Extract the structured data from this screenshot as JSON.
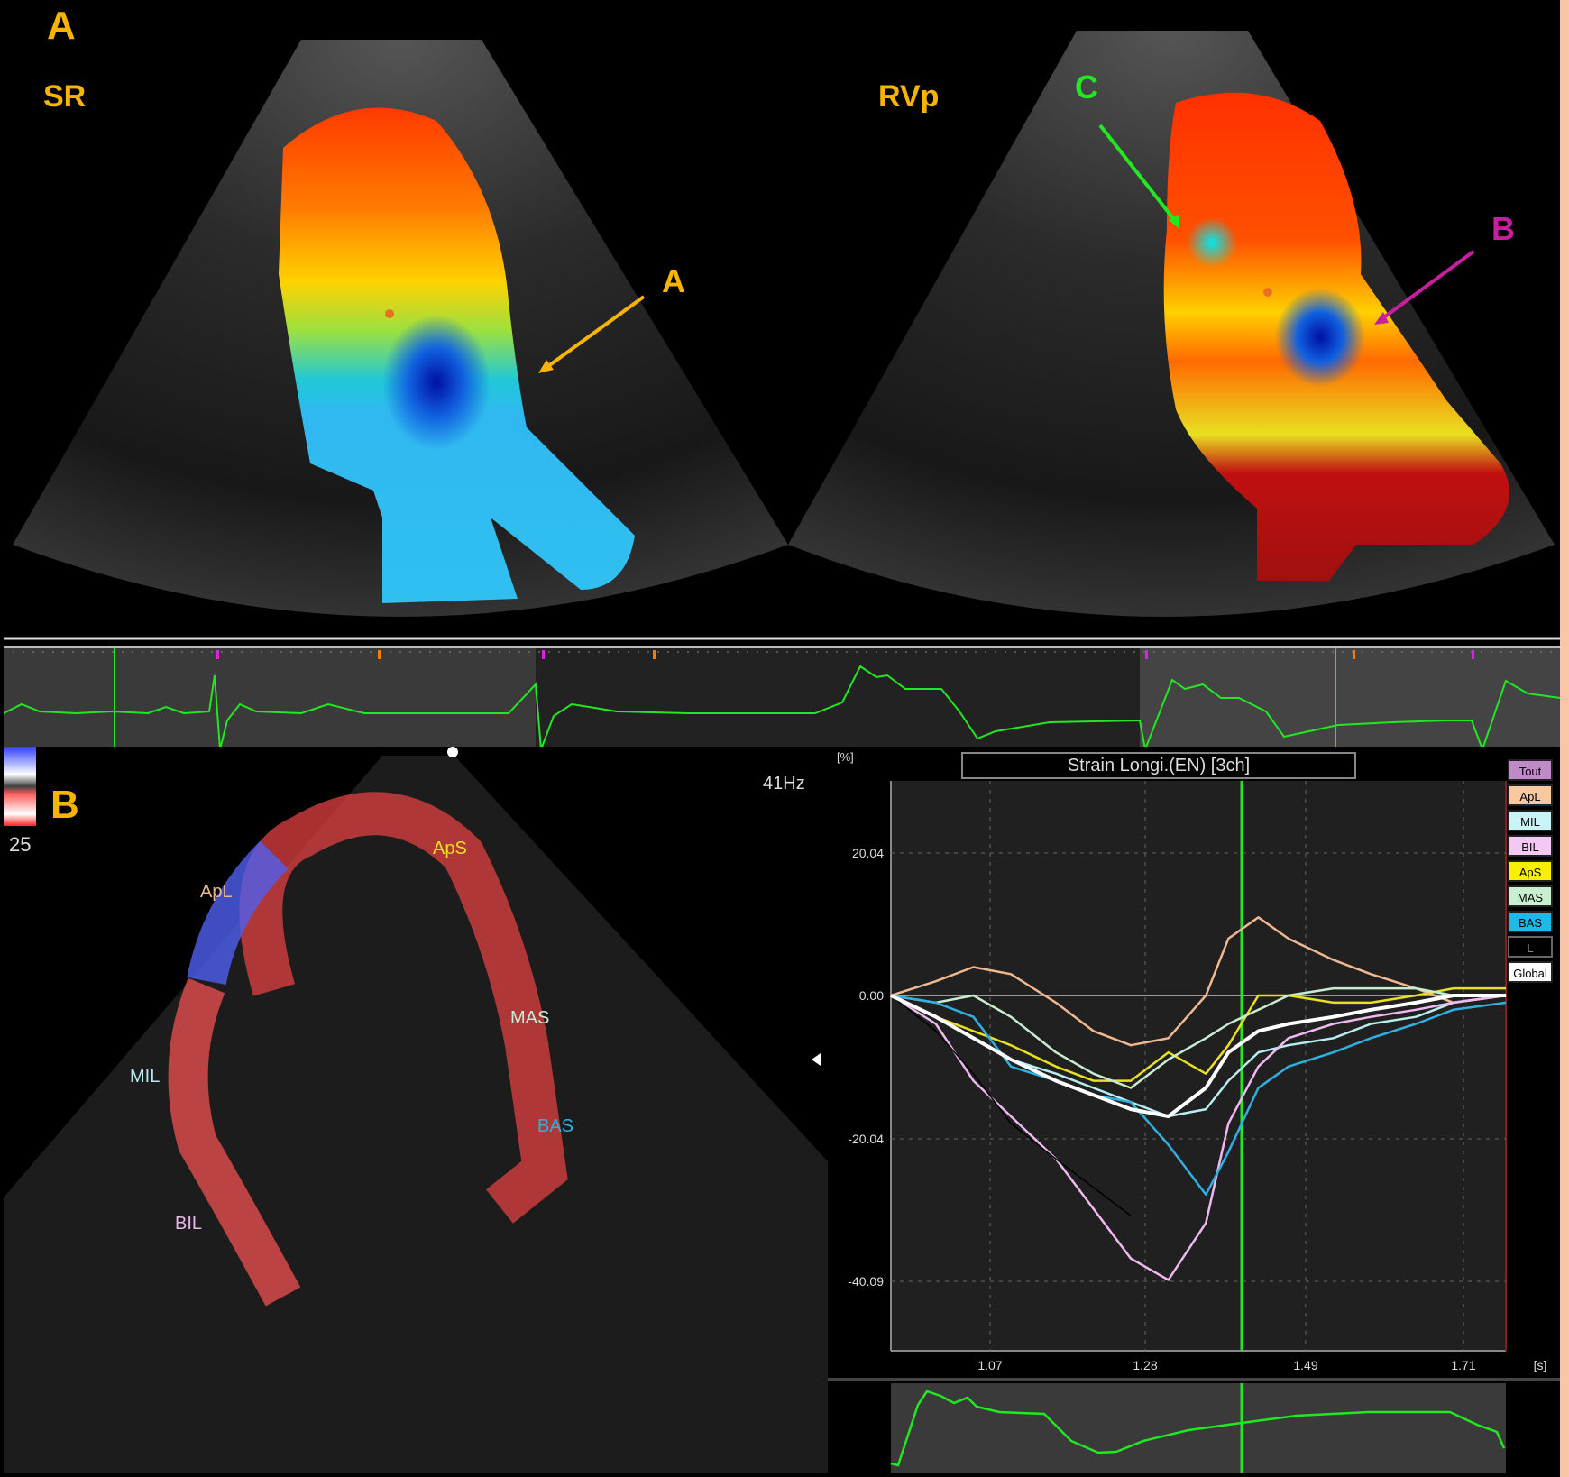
{
  "panel_labels": {
    "a": "A",
    "b": "B"
  },
  "top_panel": {
    "left_view_label": "SR",
    "right_view_label": "RVp",
    "annotations": [
      {
        "label": "A",
        "color": "#f8b400",
        "description": "orange arrow pointing at vortex region"
      },
      {
        "label": "B",
        "color": "#c81ea0",
        "description": "magenta arrow pointing at blue vortex"
      },
      {
        "label": "C",
        "color": "#22e822",
        "description": "green arrow pointing at apical vortex"
      }
    ]
  },
  "echo_panel": {
    "frame_rate": "41Hz",
    "color_scale_value": "25",
    "segments": [
      {
        "name": "ApL",
        "color": "#e8b890"
      },
      {
        "name": "MIL",
        "color": "#b8e8f0"
      },
      {
        "name": "BIL",
        "color": "#e8b8e8"
      },
      {
        "name": "ApS",
        "color": "#e8e020"
      },
      {
        "name": "MAS",
        "color": "#c8ecd8"
      },
      {
        "name": "BAS",
        "color": "#30b0e0"
      }
    ]
  },
  "chart_panel": {
    "title": "Strain Longi.(EN) [3ch]",
    "y_unit": "[%]",
    "x_unit": "[s]",
    "legend_buttons": [
      {
        "label": "Tout",
        "bg": "#c08ac8"
      },
      {
        "label": "ApL",
        "bg": "#f8c8a0"
      },
      {
        "label": "MIL",
        "bg": "#c8f4f8"
      },
      {
        "label": "BIL",
        "bg": "#f4c8f4"
      },
      {
        "label": "ApS",
        "bg": "#f8f000"
      },
      {
        "label": "MAS",
        "bg": "#c8f0d0"
      },
      {
        "label": "BAS",
        "bg": "#20b8e8"
      },
      {
        "label": "L",
        "bg": "#000000"
      },
      {
        "label": "Global",
        "bg": "#ffffff"
      }
    ]
  },
  "chart_data": {
    "type": "line",
    "title": "Strain Longi.(EN) [3ch]",
    "xlabel": "[s]",
    "ylabel": "[%]",
    "x_ticks": [
      "1.07",
      "1.28",
      "1.49",
      "1.71"
    ],
    "y_ticks": [
      "20.04",
      "0.00",
      "-20.04",
      "-40.09"
    ],
    "xlim": [
      0.96,
      1.78
    ],
    "ylim": [
      -45,
      30
    ],
    "grid": true,
    "cursor_x": 1.41,
    "x": [
      0.96,
      1.02,
      1.07,
      1.12,
      1.18,
      1.23,
      1.28,
      1.33,
      1.38,
      1.41,
      1.45,
      1.49,
      1.55,
      1.6,
      1.66,
      1.71,
      1.78
    ],
    "series": [
      {
        "name": "ApL",
        "color": "#f0b890",
        "values": [
          0,
          2,
          4,
          3,
          -1,
          -5,
          -7,
          -6,
          0,
          8,
          11,
          8,
          5,
          3,
          1,
          -1,
          0
        ]
      },
      {
        "name": "MIL",
        "color": "#b8eef0",
        "values": [
          0,
          -3,
          -6,
          -9,
          -11,
          -13,
          -15,
          -17,
          -16,
          -12,
          -8,
          -7,
          -6,
          -4,
          -3,
          -1,
          0
        ]
      },
      {
        "name": "BIL",
        "color": "#f0b8f0",
        "values": [
          0,
          -4,
          -12,
          -17,
          -23,
          -30,
          -37,
          -40,
          -32,
          -18,
          -10,
          -6,
          -4,
          -3,
          -2,
          -1,
          0
        ]
      },
      {
        "name": "ApS",
        "color": "#e8e020",
        "values": [
          0,
          -3,
          -5,
          -7,
          -10,
          -12,
          -12,
          -8,
          -11,
          -7,
          0,
          0,
          -1,
          -1,
          0,
          1,
          1
        ]
      },
      {
        "name": "MAS",
        "color": "#c8ecd0",
        "values": [
          0,
          -1,
          0,
          -3,
          -8,
          -11,
          -13,
          -9,
          -6,
          -4,
          -2,
          0,
          1,
          1,
          1,
          0,
          0
        ]
      },
      {
        "name": "BAS",
        "color": "#30b0e0",
        "values": [
          0,
          -1,
          -3,
          -10,
          -12,
          -14,
          -15,
          -21,
          -28,
          -22,
          -13,
          -10,
          -8,
          -6,
          -4,
          -2,
          -1
        ]
      },
      {
        "name": "L",
        "color": "#000000",
        "values": [
          0,
          -5,
          -11,
          -18,
          -23,
          -27,
          -31,
          null,
          null,
          null,
          null,
          null,
          null,
          null,
          null,
          null,
          null
        ]
      },
      {
        "name": "Global",
        "color": "#ffffff",
        "values": [
          0,
          -3,
          -6,
          -9,
          -12,
          -14,
          -16,
          -17,
          -13,
          -8,
          -5,
          -4,
          -3,
          -2,
          -1,
          0,
          0
        ]
      }
    ]
  }
}
